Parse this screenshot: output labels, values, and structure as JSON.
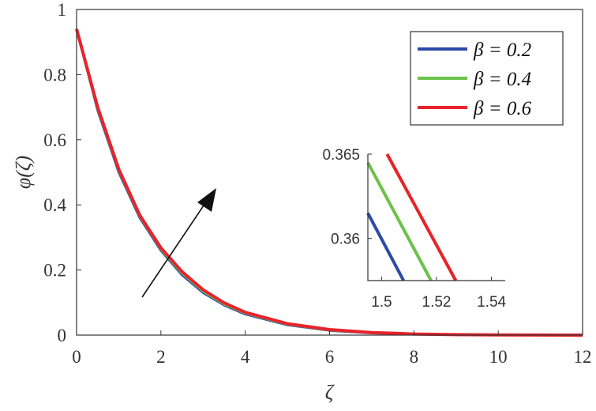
{
  "chart_data": [
    {
      "type": "line",
      "xlabel": "ζ",
      "ylabel": "φ(ζ)",
      "xlim": [
        0,
        12
      ],
      "ylim": [
        0,
        1
      ],
      "xticks": [
        "0",
        "2",
        "4",
        "6",
        "8",
        "10",
        "12"
      ],
      "yticks": [
        "0",
        "0.2",
        "0.4",
        "0.6",
        "0.8",
        "1"
      ],
      "legend_position": "top-right",
      "grid": false,
      "annotation": "arrow indicating increasing β",
      "series": [
        {
          "name": "β = 0.2",
          "color": "#2c4aa8",
          "x": [
            0,
            0.5,
            1,
            1.5,
            2,
            2.5,
            3,
            3.5,
            4,
            5,
            6,
            7,
            8,
            9,
            10,
            11,
            12
          ],
          "y": [
            0.94,
            0.69,
            0.5,
            0.36,
            0.26,
            0.185,
            0.13,
            0.092,
            0.064,
            0.031,
            0.014,
            0.006,
            0.003,
            0.001,
            0.0005,
            0.0002,
            0.0001
          ]
        },
        {
          "name": "β = 0.4",
          "color": "#6cc24a",
          "x": [
            0,
            0.5,
            1,
            1.5,
            2,
            2.5,
            3,
            3.5,
            4,
            5,
            6,
            7,
            8,
            9,
            10,
            11,
            12
          ],
          "y": [
            0.94,
            0.695,
            0.505,
            0.364,
            0.264,
            0.19,
            0.134,
            0.095,
            0.067,
            0.033,
            0.015,
            0.007,
            0.003,
            0.0012,
            0.0005,
            0.0002,
            0.0001
          ]
        },
        {
          "name": "β = 0.6",
          "color": "#e8232a",
          "x": [
            0,
            0.5,
            1,
            1.5,
            2,
            2.5,
            3,
            3.5,
            4,
            5,
            6,
            7,
            8,
            9,
            10,
            11,
            12
          ],
          "y": [
            0.94,
            0.7,
            0.51,
            0.368,
            0.268,
            0.195,
            0.139,
            0.099,
            0.07,
            0.035,
            0.017,
            0.008,
            0.0035,
            0.0015,
            0.0006,
            0.0003,
            0.0001
          ]
        }
      ]
    },
    {
      "type": "line",
      "role": "inset",
      "xlim": [
        1.495,
        1.545
      ],
      "ylim": [
        0.3575,
        0.365
      ],
      "xticks": [
        "1.5",
        "1.52",
        "1.54"
      ],
      "yticks": [
        "0.36",
        "0.365"
      ],
      "series": [
        {
          "name": "β = 0.2",
          "color": "#2c4aa8",
          "x": [
            1.495,
            1.508
          ],
          "y": [
            0.3615,
            0.3575
          ]
        },
        {
          "name": "β = 0.4",
          "color": "#6cc24a",
          "x": [
            1.495,
            1.518
          ],
          "y": [
            0.3645,
            0.3575
          ]
        },
        {
          "name": "β = 0.6",
          "color": "#e8232a",
          "x": [
            1.502,
            1.527
          ],
          "y": [
            0.365,
            0.3575
          ]
        }
      ]
    }
  ]
}
